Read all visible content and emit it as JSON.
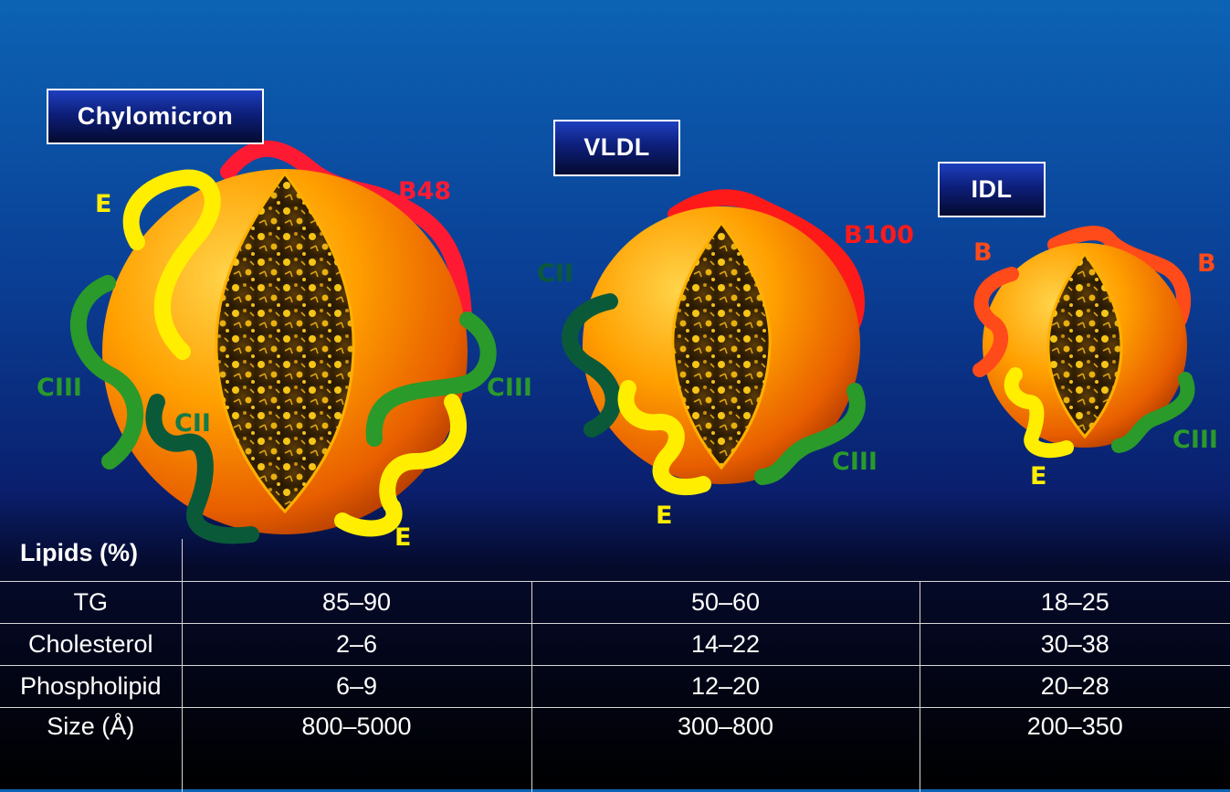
{
  "particles": [
    {
      "name": "Chylomicron",
      "apos": {
        "b": "B48",
        "e_left": "E",
        "ciii_left": "CIII",
        "cii": "CII",
        "ciii_right": "CIII",
        "e_bottom": "E"
      }
    },
    {
      "name": "VLDL",
      "apos": {
        "b": "B100",
        "cii": "CII",
        "e": "E",
        "ciii": "CIII"
      }
    },
    {
      "name": "IDL",
      "apos": {
        "b_left": "B",
        "b_right": "B",
        "e": "E",
        "ciii": "CIII"
      }
    }
  ],
  "colors": {
    "apoB": "#ff1a33",
    "apoB_idl": "#ff4a1a",
    "apoE": "#ffee00",
    "apoCII": "#0a5a3a",
    "apoCIII": "#2a9a2a",
    "sphere": "#ff9a00",
    "title_box": "#0d1f7a"
  },
  "table": {
    "header": "Lipids (%)",
    "rows": [
      {
        "label": "TG",
        "values": [
          "85–90",
          "50–60",
          "18–25"
        ]
      },
      {
        "label": "Cholesterol",
        "values": [
          "2–6",
          "14–22",
          "30–38"
        ]
      },
      {
        "label": "Phospholipid",
        "values": [
          "6–9",
          "12–20",
          "20–28"
        ]
      },
      {
        "label": "Size (Å)",
        "values": [
          "800–5000",
          "300–800",
          "200–350"
        ]
      }
    ]
  }
}
